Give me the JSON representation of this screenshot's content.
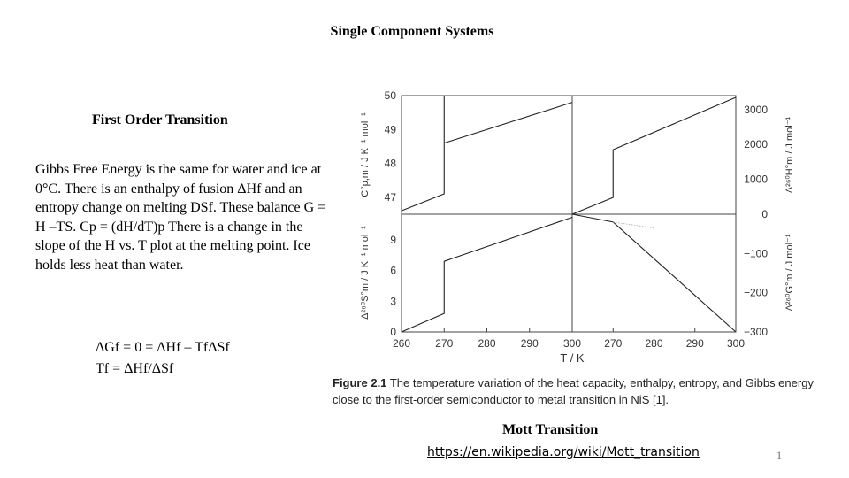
{
  "slide": {
    "title": "Single Component Systems",
    "subtitle": "First Order Transition",
    "paragraph": "Gibbs Free Energy is the same for water and ice at 0°C. There is an enthalpy of fusion ΔHf and an entropy change on melting DSf. These balance G = H –TS. Cp = (dH/dT)p There is a change in the slope of the H vs. T plot at the melting point. Ice holds less heat than water.",
    "equation1": "ΔGf = 0 = ΔHf – TfΔSf",
    "equation2": "Tf = ΔHf/ΔSf",
    "mott_heading": "Mott Transition",
    "link": "https://en.wikipedia.org/wiki/Mott_transition",
    "page_number": "1"
  },
  "figure": {
    "caption_label": "Figure 2.1",
    "caption_text": "The temperature variation of the heat capacity, enthalpy, entropy, and Gibbs energy close to the first-order semiconductor to metal transition in NiS [1].",
    "x_label": "T / K",
    "x_ticks": [
      "260",
      "270",
      "280",
      "290",
      "300",
      "270",
      "280",
      "290",
      "300"
    ],
    "left_top_ticks": [
      "50",
      "49",
      "48",
      "47"
    ],
    "left_bottom_ticks": [
      "9",
      "6",
      "3",
      "0"
    ],
    "right_top_ticks": [
      "3000",
      "2000",
      "1000",
      "0"
    ],
    "right_bottom_ticks": [
      "−100",
      "−200",
      "−300"
    ],
    "left_top_label": "C°p,m / J K⁻¹ mol⁻¹",
    "left_bottom_label": "Δ²⁶⁰S°m / J K⁻¹ mol⁻¹",
    "right_top_label": "Δ²⁶⁰H°m / J mol⁻¹",
    "right_bottom_label": "Δ²⁶⁰G°m / J mol⁻¹"
  },
  "chart_data": [
    {
      "type": "line",
      "title": "",
      "xlabel": "T / K",
      "ylabel": "C°p,m / J K⁻¹ mol⁻¹",
      "xlim": [
        260,
        300
      ],
      "ylim": [
        46.5,
        50
      ],
      "series": [
        {
          "x": [
            260,
            270,
            270,
            270,
            300
          ],
          "y": [
            46.6,
            47.1,
            50,
            48.6,
            49.8
          ]
        }
      ]
    },
    {
      "type": "line",
      "title": "",
      "xlabel": "T / K",
      "ylabel": "Δ²⁶⁰S°m / J K⁻¹ mol⁻¹",
      "xlim": [
        260,
        300
      ],
      "ylim": [
        0,
        11.5
      ],
      "series": [
        {
          "x": [
            260,
            270,
            270,
            300
          ],
          "y": [
            0,
            1.8,
            6.9,
            11.2
          ]
        }
      ]
    },
    {
      "type": "line",
      "title": "",
      "xlabel": "T / K",
      "ylabel": "Δ²⁶⁰H°m / J mol⁻¹",
      "xlim": [
        260,
        300
      ],
      "ylim": [
        0,
        3400
      ],
      "series": [
        {
          "x": [
            260,
            270,
            270,
            300
          ],
          "y": [
            0,
            480,
            1850,
            3350
          ]
        }
      ]
    },
    {
      "type": "line",
      "title": "",
      "xlabel": "T / K",
      "ylabel": "Δ²⁶⁰G°m / J mol⁻¹",
      "xlim": [
        260,
        300
      ],
      "ylim": [
        -300,
        0
      ],
      "series": [
        {
          "x": [
            260,
            270,
            300
          ],
          "y": [
            0,
            -20,
            -300
          ]
        },
        {
          "x": [
            270,
            280
          ],
          "y": [
            -20,
            -35
          ]
        }
      ]
    }
  ]
}
